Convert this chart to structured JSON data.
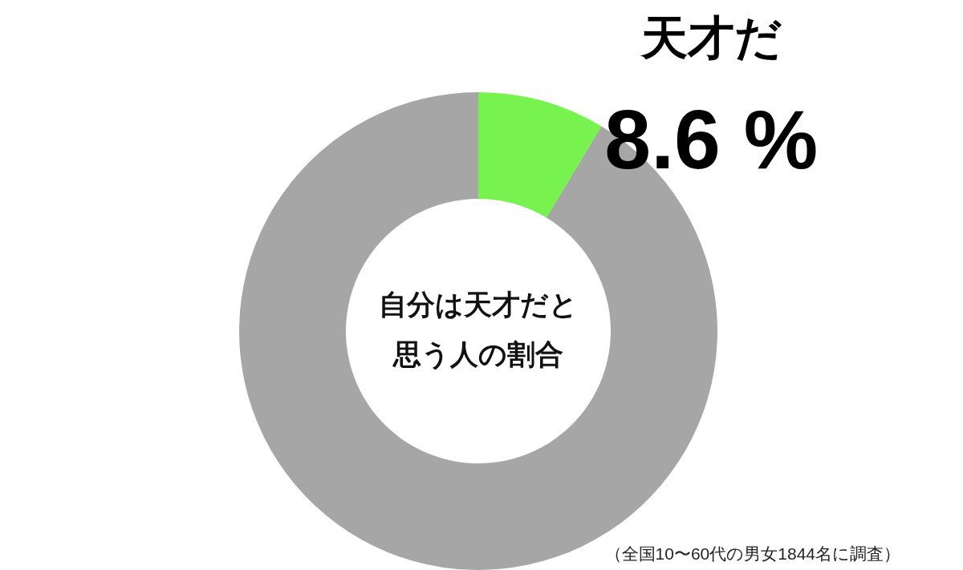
{
  "chart_data": {
    "type": "donut",
    "title": "自分は天才だと思う人の割合",
    "categories": [
      "天才だ",
      null
    ],
    "values": [
      8.6,
      91.4
    ],
    "colors": [
      "#77f24f",
      "#a6a6a6"
    ],
    "value_labels": [
      "8.6 %",
      null
    ],
    "annotations": [
      "（全国10〜60代の男女1844名に調査）"
    ]
  }
}
